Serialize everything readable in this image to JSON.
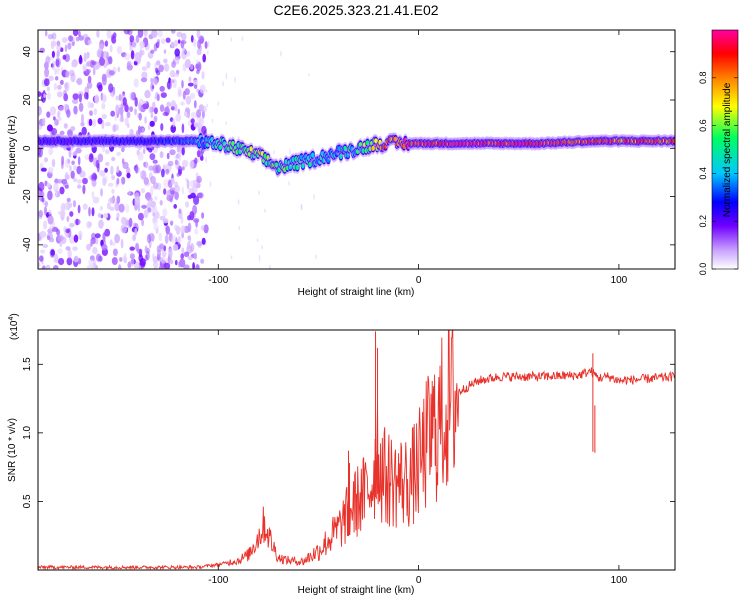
{
  "title": "C2E6.2025.323.21.41.E02",
  "chart_data": [
    {
      "type": "heatmap",
      "xlabel": "Height of straight line (km)",
      "ylabel": "Frequency (Hz)",
      "xlim": [
        -190,
        128
      ],
      "ylim": [
        -50,
        49
      ],
      "xticks": [
        -100,
        0,
        100
      ],
      "yticks": [
        -40,
        -20,
        0,
        20,
        40
      ],
      "colorbar": {
        "label": "Normalized spectral amplitude",
        "range": [
          0.0,
          1.0
        ],
        "ticks": [
          "0.0",
          "0.2",
          "0.4",
          "0.6",
          "0.8"
        ],
        "tick_values": [
          0.0,
          0.2,
          0.4,
          0.6,
          0.8
        ],
        "colors": [
          "#ffffff",
          "#c8a0ff",
          "#7000ff",
          "#0000ff",
          "#00c8ff",
          "#00ff60",
          "#ffff00",
          "#ff8000",
          "#ff0000",
          "#ff00a0"
        ]
      },
      "noise_region_x": [
        -190,
        -110
      ],
      "ridge": {
        "x": [
          -190,
          -150,
          -120,
          -110,
          -95,
          -80,
          -70,
          -60,
          -50,
          -40,
          -30,
          -20,
          -10,
          0,
          30,
          60,
          90,
          128
        ],
        "freq": [
          3,
          3,
          3,
          3,
          1,
          -3,
          -8,
          -6,
          -4,
          -2,
          0,
          2,
          2,
          2,
          2,
          2,
          3,
          3
        ],
        "amplitude": [
          0.25,
          0.3,
          0.35,
          0.4,
          0.55,
          0.6,
          0.55,
          0.5,
          0.45,
          0.45,
          0.5,
          0.7,
          0.85,
          0.9,
          0.9,
          0.9,
          0.85,
          0.8
        ]
      }
    },
    {
      "type": "line",
      "xlabel": "Height of straight line (km)",
      "ylabel": "SNR (10 * v/v)",
      "multiplier": "(x10",
      "multiplier_exp": "4",
      "xlim": [
        -190,
        128
      ],
      "ylim": [
        0,
        1.75
      ],
      "xticks": [
        -100,
        0,
        100
      ],
      "yticks": [
        "0.5",
        "1.0",
        "1.5"
      ],
      "ytick_values": [
        0.5,
        1.0,
        1.5
      ],
      "color": "#e8312a",
      "profile": {
        "x": [
          -190,
          -110,
          -100,
          -90,
          -85,
          -80,
          -77,
          -74,
          -70,
          -65,
          -58,
          -50,
          -40,
          -32,
          -25,
          -22,
          -21,
          -20,
          -17,
          -12,
          -5,
          0,
          5,
          10,
          15,
          20,
          30,
          40,
          60,
          80,
          86,
          90,
          95,
          100,
          110,
          128
        ],
        "y": [
          0.02,
          0.02,
          0.04,
          0.07,
          0.11,
          0.24,
          0.34,
          0.22,
          0.09,
          0.07,
          0.06,
          0.14,
          0.3,
          0.48,
          0.58,
          0.72,
          1.05,
          0.8,
          0.68,
          0.65,
          0.64,
          0.75,
          0.95,
          1.07,
          1.2,
          1.3,
          1.38,
          1.41,
          1.41,
          1.42,
          1.45,
          1.4,
          1.41,
          1.38,
          1.39,
          1.41
        ]
      },
      "spikes": [
        {
          "x": -21.5,
          "y": 1.74
        },
        {
          "x": -20.5,
          "y": 1.62
        },
        {
          "x": -35,
          "y": 0.87
        },
        {
          "x": -34.5,
          "y": 0.78
        },
        {
          "x": 87,
          "y": 1.58
        },
        {
          "x": 88,
          "y": 1.2
        }
      ]
    }
  ]
}
